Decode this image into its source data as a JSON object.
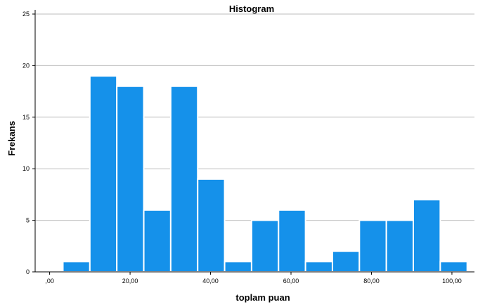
{
  "chart_data": {
    "type": "bar",
    "title": "Histogram",
    "xlabel": "toplam puan",
    "ylabel": "Frekans",
    "xlim": [
      -3.6,
      105.6
    ],
    "ylim": [
      0,
      25
    ],
    "grid": "horizontal",
    "bar_color": "#1591EA",
    "bar_edge_color": "#ffffff",
    "grid_color": "#BDBDBD",
    "x_ticks": [
      {
        "value": 0,
        "label": ",00"
      },
      {
        "value": 20,
        "label": "20,00"
      },
      {
        "value": 40,
        "label": "40,00"
      },
      {
        "value": 60,
        "label": "60,00"
      },
      {
        "value": 80,
        "label": "80,00"
      },
      {
        "value": 100,
        "label": "100,00"
      }
    ],
    "y_ticks": [
      {
        "value": 0,
        "label": "0"
      },
      {
        "value": 5,
        "label": "5"
      },
      {
        "value": 10,
        "label": "10"
      },
      {
        "value": 15,
        "label": "15"
      },
      {
        "value": 20,
        "label": "20"
      },
      {
        "value": 25,
        "label": "25"
      }
    ],
    "bins": [
      {
        "start": 3.3,
        "end": 10,
        "count": 1
      },
      {
        "start": 10,
        "end": 16.7,
        "count": 19
      },
      {
        "start": 16.7,
        "end": 23.4,
        "count": 18
      },
      {
        "start": 23.4,
        "end": 30.1,
        "count": 6
      },
      {
        "start": 30.1,
        "end": 36.8,
        "count": 18
      },
      {
        "start": 36.8,
        "end": 43.5,
        "count": 9
      },
      {
        "start": 43.5,
        "end": 50.2,
        "count": 1
      },
      {
        "start": 50.2,
        "end": 56.9,
        "count": 5
      },
      {
        "start": 56.9,
        "end": 63.6,
        "count": 6
      },
      {
        "start": 63.6,
        "end": 70.3,
        "count": 1
      },
      {
        "start": 70.3,
        "end": 77,
        "count": 2
      },
      {
        "start": 77,
        "end": 83.7,
        "count": 5
      },
      {
        "start": 83.7,
        "end": 90.4,
        "count": 5
      },
      {
        "start": 90.4,
        "end": 97.1,
        "count": 7
      },
      {
        "start": 97.1,
        "end": 103.8,
        "count": 1
      }
    ]
  }
}
